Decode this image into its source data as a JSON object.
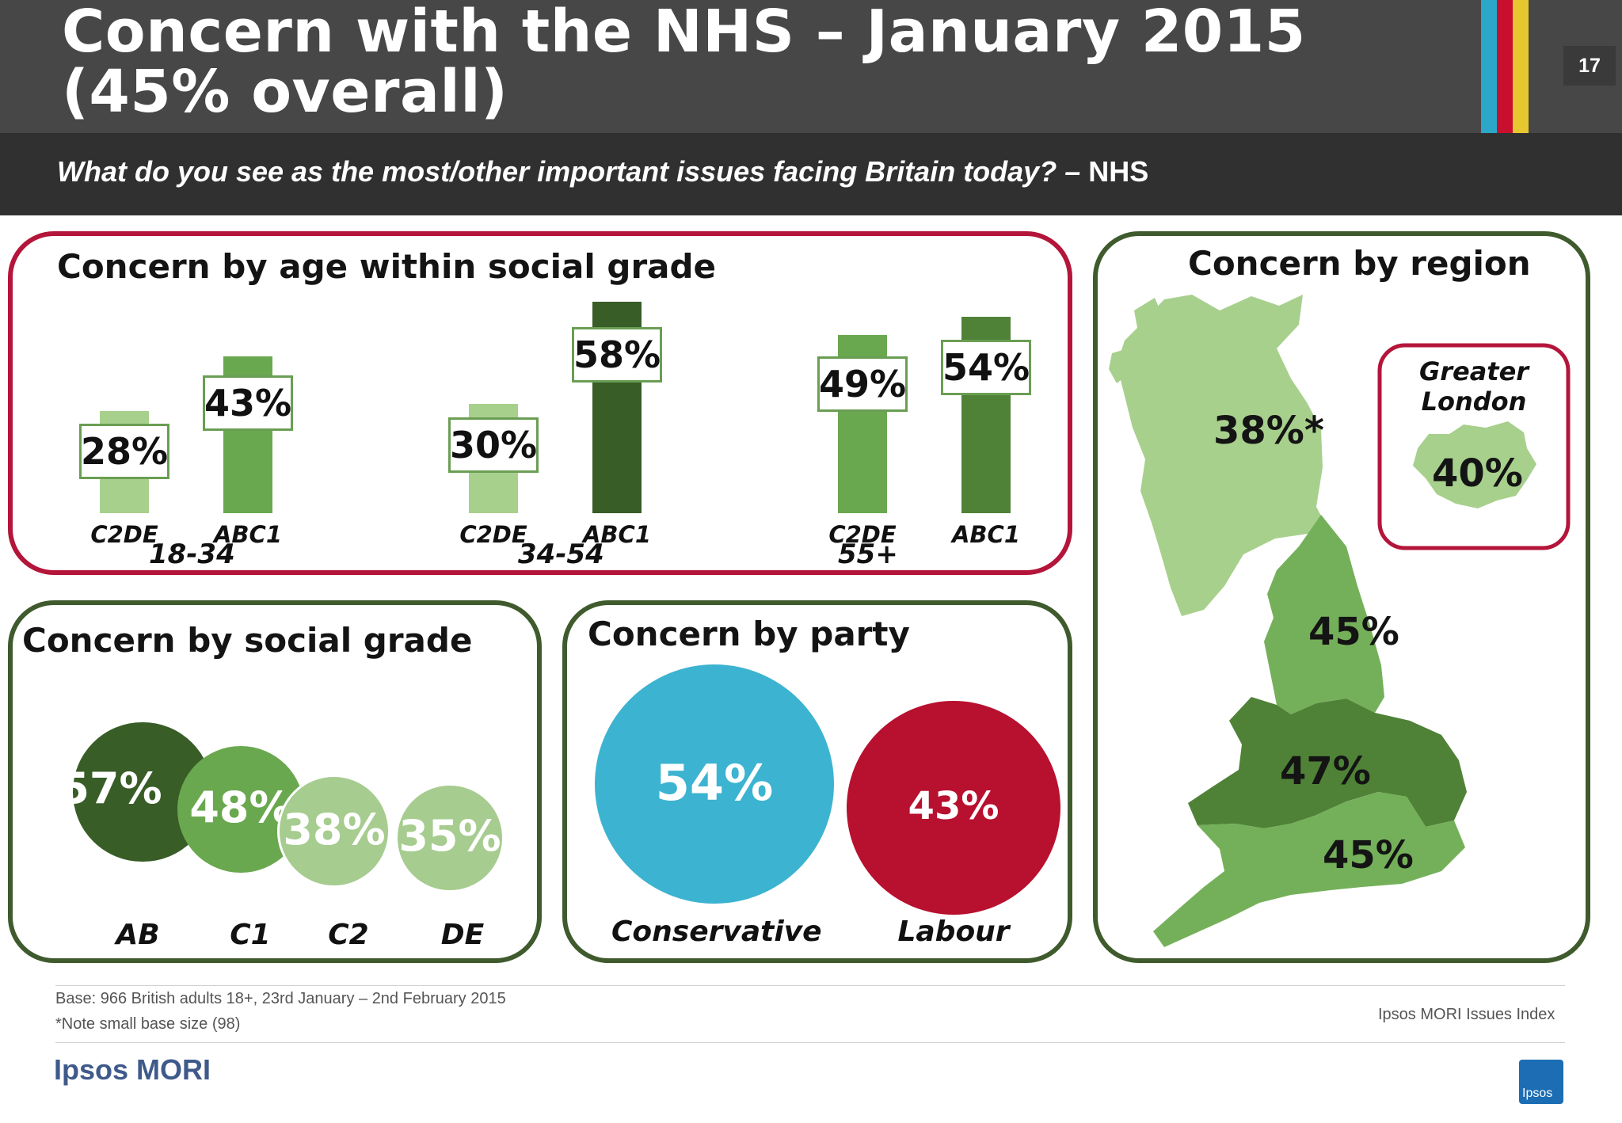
{
  "header": {
    "title_line1": "Concern with the NHS – January 2015",
    "title_line2": "(45% overall)",
    "page_number": "17",
    "stripe_colors": [
      "#2aa7c9",
      "#c8102e",
      "#e7c72f"
    ],
    "question": "What do you see as the most/other important issues facing Britain today? –",
    "question_tag": "NHS"
  },
  "colors": {
    "panel_green_border": "#3f5b2d",
    "panel_red_border": "#b4153a",
    "conservative": "#3cb3d0",
    "labour": "#b8102f"
  },
  "chart_data": [
    {
      "type": "bar",
      "title": "Concern by age within social grade",
      "groups": [
        "18-34",
        "34-54",
        "55+"
      ],
      "series": [
        {
          "name": "C2DE",
          "values": [
            28,
            30,
            49
          ],
          "labels": [
            "28%",
            "30%",
            "49%"
          ]
        },
        {
          "name": "ABC1",
          "values": [
            43,
            58,
            54
          ],
          "labels": [
            "43%",
            "58%",
            "54%"
          ]
        }
      ],
      "unit": "%"
    },
    {
      "type": "bubble",
      "title": "Concern by social grade",
      "categories": [
        "AB",
        "C1",
        "C2",
        "DE"
      ],
      "values": [
        57,
        48,
        38,
        35
      ],
      "labels": [
        "57%",
        "48%",
        "38%",
        "35%"
      ],
      "colors": [
        "#385d27",
        "#6aa84f",
        "#a6cc8f",
        "#a6cc8f"
      ]
    },
    {
      "type": "bubble",
      "title": "Concern by party",
      "categories": [
        "Conservative",
        "Labour"
      ],
      "values": [
        54,
        43
      ],
      "labels": [
        "54%",
        "43%"
      ],
      "colors": [
        "#3cb3d0",
        "#b8102f"
      ]
    },
    {
      "type": "map",
      "title": "Concern by region",
      "regions": [
        {
          "name": "Scotland",
          "label": "38%*",
          "value": 38,
          "color": "#a8d08d"
        },
        {
          "name": "North",
          "label": "45%",
          "value": 45,
          "color": "#74b059"
        },
        {
          "name": "Midlands & Wales",
          "label": "47%",
          "value": 47,
          "color": "#4f8237"
        },
        {
          "name": "South",
          "label": "45%",
          "value": 45,
          "color": "#74b059"
        }
      ],
      "inset": {
        "title": "Greater London",
        "label": "40%",
        "value": 40,
        "color": "#a8d08d"
      }
    }
  ],
  "footer": {
    "base": "Base: 966 British adults 18+, 23rd January – 2nd February 2015",
    "note": "*Note small base size (98)",
    "source": "Ipsos MORI Issues Index",
    "logo_text": "Ipsos MORI",
    "logo_badge": "Ipsos"
  }
}
